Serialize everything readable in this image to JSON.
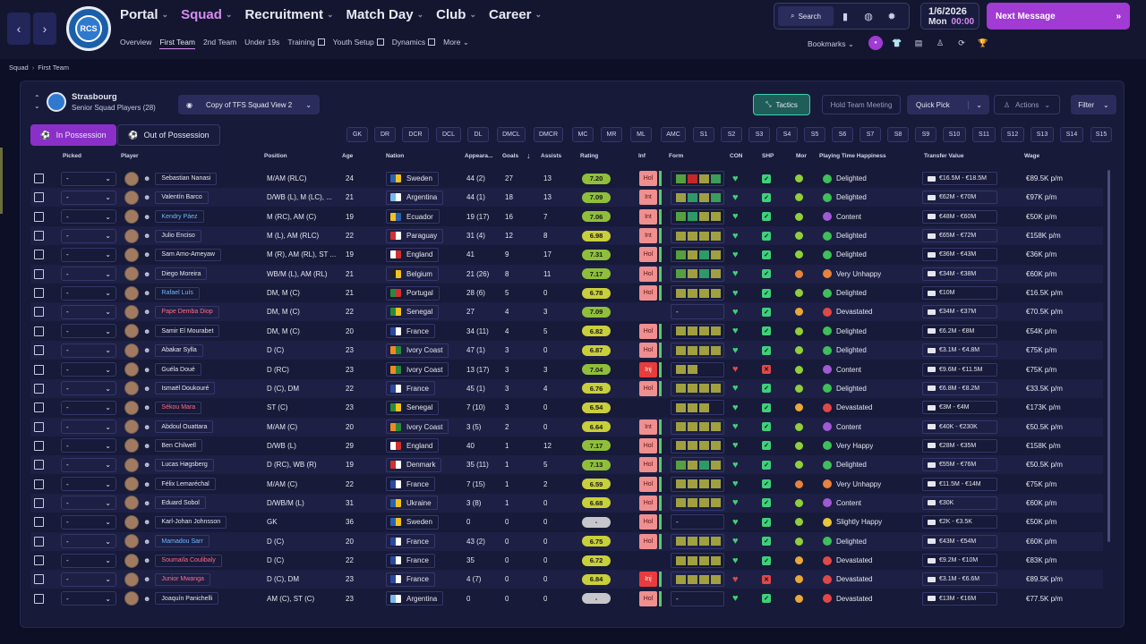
{
  "header": {
    "main_nav": [
      {
        "label": "Portal",
        "chevron": true,
        "active": false
      },
      {
        "label": "Squad",
        "chevron": true,
        "active": true
      },
      {
        "label": "Recruitment",
        "chevron": true,
        "active": false
      },
      {
        "label": "Match Day",
        "chevron": true,
        "active": false
      },
      {
        "label": "Club",
        "chevron": true,
        "active": false
      },
      {
        "label": "Career",
        "chevron": true,
        "active": false
      }
    ],
    "sub_nav": [
      {
        "label": "Overview",
        "active": false,
        "external": false
      },
      {
        "label": "First Team",
        "active": true,
        "external": false
      },
      {
        "label": "2nd Team",
        "active": false,
        "external": false
      },
      {
        "label": "Under 19s",
        "active": false,
        "external": false
      },
      {
        "label": "Training",
        "active": false,
        "external": true
      },
      {
        "label": "Youth Setup",
        "active": false,
        "external": true
      },
      {
        "label": "Dynamics",
        "active": false,
        "external": true
      },
      {
        "label": "More",
        "active": false,
        "external": false
      }
    ],
    "search_label": "Search",
    "date": "1/6/2026",
    "day": "Mon",
    "time": "00:00",
    "next_message": "Next Message",
    "bookmarks_label": "Bookmarks",
    "accent_color": "#a23ad4"
  },
  "breadcrumb": [
    "Squad",
    "First Team"
  ],
  "team": {
    "name": "Strasbourg",
    "subtitle": "Senior Squad Players (28)",
    "view_name": "Copy of TFS Squad View 2"
  },
  "toolbar": {
    "tactics": "Tactics",
    "hold_meeting": "Hold Team Meeting",
    "quick_pick": "Quick Pick",
    "actions": "Actions",
    "filter": "Filter",
    "in_possession": "In Possession",
    "out_of_possession": "Out of Possession"
  },
  "position_chips": [
    "GK",
    "DR",
    "DCR",
    "DCL",
    "DL",
    "DMCL",
    "DMCR",
    "MC",
    "MR",
    "ML",
    "AMC",
    "S1",
    "S2",
    "S3",
    "S4",
    "S5",
    "S6",
    "S7",
    "S8",
    "S9",
    "S10",
    "S11",
    "S12",
    "S13",
    "S14",
    "S15"
  ],
  "columns": [
    "Picked",
    "Player",
    "Position",
    "Age",
    "Nation",
    "Appeara...",
    "Goals",
    "Assists",
    "Rating",
    "Inf",
    "Form",
    "CON",
    "SHP",
    "Mor",
    "Playing Time Happiness",
    "Transfer Value",
    "Wage"
  ],
  "players": [
    {
      "name": "Sebastian Nanasi",
      "style": "white",
      "position": "M/AM (RLC)",
      "age": "24",
      "nation": "Sweden",
      "apps": "44 (2)",
      "goals": "27",
      "assists": "13",
      "rating": "7.20",
      "inf": "Hol",
      "form": [
        "#55a040",
        "#c52828",
        "#a0a040",
        "#3c9c5a"
      ],
      "happiness": "Delighted",
      "tv": "€16.5M - €18.5M",
      "wage": "€89.5K p/m"
    },
    {
      "name": "Valentín Barco",
      "style": "white",
      "position": "D/WB (L), M (LC), ...",
      "age": "21",
      "nation": "Argentina",
      "apps": "44 (1)",
      "goals": "18",
      "assists": "13",
      "rating": "7.09",
      "inf": "Int",
      "form": [
        "#9ca044",
        "#2e9a66",
        "#a0a040",
        "#3c9c5a"
      ],
      "happiness": "Delighted",
      "tv": "€62M - €70M",
      "wage": "€97K p/m"
    },
    {
      "name": "Kendry Páez",
      "style": "blue",
      "position": "M (RC), AM (C)",
      "age": "19",
      "nation": "Ecuador",
      "apps": "19 (17)",
      "goals": "16",
      "assists": "7",
      "rating": "7.06",
      "inf": "Int",
      "form": [
        "#55a040",
        "#2e9a66",
        "#a0a040",
        "#a0a040"
      ],
      "happiness": "Content",
      "tv": "€48M - €60M",
      "wage": "€50K p/m"
    },
    {
      "name": "Julio Enciso",
      "style": "white",
      "position": "M (L), AM (RLC)",
      "age": "22",
      "nation": "Paraguay",
      "apps": "31 (4)",
      "goals": "12",
      "assists": "8",
      "rating": "6.98",
      "inf": "Int",
      "form": [
        "#a0a040",
        "#a0a040",
        "#a0a040",
        "#a0a040"
      ],
      "happiness": "Delighted",
      "tv": "€65M - €72M",
      "wage": "€158K p/m"
    },
    {
      "name": "Sam Amo-Ameyaw",
      "style": "white",
      "position": "M (R), AM (RL), ST ...",
      "age": "19",
      "nation": "England",
      "apps": "41",
      "goals": "9",
      "assists": "17",
      "rating": "7.31",
      "inf": "Hol",
      "form": [
        "#55a040",
        "#a0a040",
        "#2e9a66",
        "#a0a040"
      ],
      "happiness": "Delighted",
      "tv": "€36M - €43M",
      "wage": "€36K p/m"
    },
    {
      "name": "Diego Moreira",
      "style": "white",
      "position": "WB/M (L), AM (RL)",
      "age": "21",
      "nation": "Belgium",
      "apps": "21 (26)",
      "goals": "8",
      "assists": "11",
      "rating": "7.17",
      "inf": "Hol",
      "form": [
        "#55a040",
        "#a0a040",
        "#2e9a66",
        "#a0a040"
      ],
      "happiness": "Very Unhappy",
      "tv": "€34M - €38M",
      "wage": "€60K p/m"
    },
    {
      "name": "Rafael Luís",
      "style": "blue",
      "position": "DM, M (C)",
      "age": "21",
      "nation": "Portugal",
      "apps": "28 (6)",
      "goals": "5",
      "assists": "0",
      "rating": "6.78",
      "inf": "Hol",
      "form": [
        "#a0a040",
        "#a0a040",
        "#a0a040",
        "#a0a040"
      ],
      "happiness": "Delighted",
      "tv": "€10M",
      "wage": "€16.5K p/m"
    },
    {
      "name": "Pape Demba Diop",
      "style": "red",
      "position": "DM, M (C)",
      "age": "22",
      "nation": "Senegal",
      "apps": "27",
      "goals": "4",
      "assists": "3",
      "rating": "7.09",
      "inf": "",
      "form": [],
      "happiness": "Devastated",
      "tv": "€34M - €37M",
      "wage": "€70.5K p/m"
    },
    {
      "name": "Samir El Mourabet",
      "style": "white",
      "position": "DM, M (C)",
      "age": "20",
      "nation": "France",
      "apps": "34 (11)",
      "goals": "4",
      "assists": "5",
      "rating": "6.82",
      "inf": "Hol",
      "form": [
        "#a0a040",
        "#a0a040",
        "#a0a040",
        "#a0a040"
      ],
      "happiness": "Delighted",
      "tv": "€6.2M - €8M",
      "wage": "€54K p/m"
    },
    {
      "name": "Abakar Sylla",
      "style": "white",
      "position": "D (C)",
      "age": "23",
      "nation": "Ivory Coast",
      "apps": "47 (1)",
      "goals": "3",
      "assists": "0",
      "rating": "6.87",
      "inf": "Hol",
      "form": [
        "#a0a040",
        "#a0a040",
        "#a0a040",
        "#a0a040"
      ],
      "happiness": "Delighted",
      "tv": "€3.1M - €4.8M",
      "wage": "€75K p/m"
    },
    {
      "name": "Guéla Doué",
      "style": "white",
      "position": "D (RC)",
      "age": "23",
      "nation": "Ivory Coast",
      "apps": "13 (17)",
      "goals": "3",
      "assists": "3",
      "rating": "7.04",
      "inf": "Inj",
      "form": [
        "#a0a040",
        "#a0a040"
      ],
      "happiness": "Content",
      "tv": "€9.6M - €11.5M",
      "wage": "€75K p/m"
    },
    {
      "name": "Ismaël Doukouré",
      "style": "white",
      "position": "D (C), DM",
      "age": "22",
      "nation": "France",
      "apps": "45 (1)",
      "goals": "3",
      "assists": "4",
      "rating": "6.76",
      "inf": "Hol",
      "form": [
        "#a0a040",
        "#a0a040",
        "#a0a040",
        "#a0a040"
      ],
      "happiness": "Delighted",
      "tv": "€6.8M - €8.2M",
      "wage": "€33.5K p/m"
    },
    {
      "name": "Sékou Mara",
      "style": "red",
      "position": "ST (C)",
      "age": "23",
      "nation": "Senegal",
      "apps": "7 (10)",
      "goals": "3",
      "assists": "0",
      "rating": "6.54",
      "inf": "",
      "form": [
        "#a0a040",
        "#a0a040",
        "#a0a040"
      ],
      "happiness": "Devastated",
      "tv": "€3M - €4M",
      "wage": "€173K p/m"
    },
    {
      "name": "Abdoul Ouattara",
      "style": "white",
      "position": "M/AM (C)",
      "age": "20",
      "nation": "Ivory Coast",
      "apps": "3 (5)",
      "goals": "2",
      "assists": "0",
      "rating": "6.64",
      "inf": "Int",
      "form": [
        "#a0a040",
        "#a0a040",
        "#a0a040",
        "#a0a040"
      ],
      "happiness": "Content",
      "tv": "€40K - €230K",
      "wage": "€50.5K p/m"
    },
    {
      "name": "Ben Chilwell",
      "style": "white",
      "position": "D/WB (L)",
      "age": "29",
      "nation": "England",
      "apps": "40",
      "goals": "1",
      "assists": "12",
      "rating": "7.17",
      "inf": "Hol",
      "form": [
        "#a0a040",
        "#a0a040",
        "#a0a040",
        "#a0a040"
      ],
      "happiness": "Very Happy",
      "tv": "€28M - €35M",
      "wage": "€158K p/m"
    },
    {
      "name": "Lucas Høgsberg",
      "style": "white",
      "position": "D (RC), WB (R)",
      "age": "19",
      "nation": "Denmark",
      "apps": "35 (11)",
      "goals": "1",
      "assists": "5",
      "rating": "7.13",
      "inf": "Hol",
      "form": [
        "#55a040",
        "#a0a040",
        "#2e9a66",
        "#a0a040"
      ],
      "happiness": "Delighted",
      "tv": "€55M - €76M",
      "wage": "€50.5K p/m"
    },
    {
      "name": "Félix Lemaréchal",
      "style": "white",
      "position": "M/AM (C)",
      "age": "22",
      "nation": "France",
      "apps": "7 (15)",
      "goals": "1",
      "assists": "2",
      "rating": "6.59",
      "inf": "Hol",
      "form": [
        "#a0a040",
        "#a0a040",
        "#a0a040",
        "#a0a040"
      ],
      "happiness": "Very Unhappy",
      "tv": "€11.5M - €14M",
      "wage": "€75K p/m"
    },
    {
      "name": "Eduard Sobol",
      "style": "white",
      "position": "D/WB/M (L)",
      "age": "31",
      "nation": "Ukraine",
      "apps": "3 (8)",
      "goals": "1",
      "assists": "0",
      "rating": "6.68",
      "inf": "Hol",
      "form": [
        "#a0a040",
        "#a0a040",
        "#a0a040",
        "#a0a040"
      ],
      "happiness": "Content",
      "tv": "€30K",
      "wage": "€60K p/m"
    },
    {
      "name": "Karl-Johan Johnsson",
      "style": "white",
      "position": "GK",
      "age": "36",
      "nation": "Sweden",
      "apps": "0",
      "goals": "0",
      "assists": "0",
      "rating": "-",
      "inf": "Hol",
      "form": [],
      "happiness": "Slightly Happy",
      "tv": "€2K - €3.5K",
      "wage": "€50K p/m"
    },
    {
      "name": "Mamadou Sarr",
      "style": "blue",
      "position": "D (C)",
      "age": "20",
      "nation": "France",
      "apps": "43 (2)",
      "goals": "0",
      "assists": "0",
      "rating": "6.75",
      "inf": "Hol",
      "form": [
        "#a0a040",
        "#a0a040",
        "#a0a040",
        "#a0a040"
      ],
      "happiness": "Delighted",
      "tv": "€43M - €54M",
      "wage": "€60K p/m"
    },
    {
      "name": "Soumaïla Coulibaly",
      "style": "red",
      "position": "D (C)",
      "age": "22",
      "nation": "France",
      "apps": "35",
      "goals": "0",
      "assists": "0",
      "rating": "6.72",
      "inf": "",
      "form": [
        "#a0a040",
        "#a0a040",
        "#a0a040",
        "#a0a040"
      ],
      "happiness": "Devastated",
      "tv": "€9.2M - €10M",
      "wage": "€83K p/m"
    },
    {
      "name": "Junior Mwanga",
      "style": "red",
      "position": "D (C), DM",
      "age": "23",
      "nation": "France",
      "apps": "4 (7)",
      "goals": "0",
      "assists": "0",
      "rating": "6.84",
      "inf": "Inj",
      "form": [
        "#a0a040",
        "#a0a040",
        "#a0a040",
        "#a0a040"
      ],
      "happiness": "Devastated",
      "tv": "€3.1M - €6.6M",
      "wage": "€89.5K p/m"
    },
    {
      "name": "Joaquín Panichelli",
      "style": "white",
      "position": "AM (C), ST (C)",
      "age": "23",
      "nation": "Argentina",
      "apps": "0",
      "goals": "0",
      "assists": "0",
      "rating": "-",
      "inf": "Hol",
      "form": [],
      "happiness": "Devastated",
      "tv": "€13M - €16M",
      "wage": "€77.5K p/m"
    }
  ],
  "colors": {
    "happy_green": "#3fbf5a",
    "content_purple": "#a05ad4",
    "unhappy_orange": "#e8823a",
    "devastated_red": "#e04848",
    "slight_yellow": "#e8c53a",
    "rating_green": "#8fbf3a",
    "rating_yellow": "#c9cf3a",
    "rating_gray": "#c6c6cc"
  }
}
